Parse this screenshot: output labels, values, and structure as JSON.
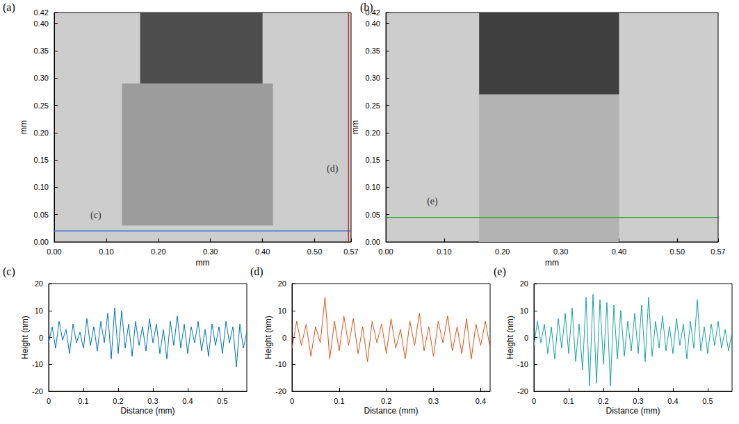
{
  "chart_data": [
    {
      "type": "image",
      "label": "(a)",
      "x_label": "mm",
      "y_label": "mm",
      "xlim": [
        0,
        0.57
      ],
      "xticks": [
        {
          "value": 0,
          "label": "0.00"
        },
        {
          "value": 0.1,
          "label": "0.10"
        },
        {
          "value": 0.2,
          "label": "0.20"
        },
        {
          "value": 0.3,
          "label": "0.30"
        },
        {
          "value": 0.4,
          "label": "0.40"
        },
        {
          "value": 0.5,
          "label": "0.50"
        },
        {
          "value": 0.57,
          "label": "0.57"
        }
      ],
      "ylim": [
        0,
        0.42
      ],
      "yticks": [
        {
          "value": 0,
          "label": "0.00"
        },
        {
          "value": 0.05,
          "label": "0.05"
        },
        {
          "value": 0.1,
          "label": "0.10"
        },
        {
          "value": 0.15,
          "label": "0.15"
        },
        {
          "value": 0.2,
          "label": "0.20"
        },
        {
          "value": 0.25,
          "label": "0.25"
        },
        {
          "value": 0.3,
          "label": "0.30"
        },
        {
          "value": 0.35,
          "label": "0.35"
        },
        {
          "value": 0.4,
          "label": "0.40"
        },
        {
          "value": 0.42,
          "label": "0.42"
        }
      ],
      "grid": false,
      "regions": [
        {
          "x": [
            0.13,
            0.42
          ],
          "y": [
            0.03,
            0.29
          ],
          "color": "#9c9c9c"
        },
        {
          "x": [
            0.165,
            0.4
          ],
          "y": [
            0.29,
            0.42
          ],
          "color": "#4d4d4d"
        }
      ],
      "profiles": [
        {
          "label": "(c)",
          "x": [
            0,
            0.57
          ],
          "y": [
            0.02,
            0.02
          ],
          "color": "#3b6fd4"
        },
        {
          "label": "(d)",
          "x": [
            0.565,
            0.565
          ],
          "y": [
            0,
            0.42
          ],
          "color": "#c0392b"
        }
      ]
    },
    {
      "type": "image",
      "label": "(b)",
      "x_label": "mm",
      "y_label": "mm",
      "xlim": [
        0,
        0.57
      ],
      "xticks": [
        {
          "value": 0,
          "label": "0.00"
        },
        {
          "value": 0.1,
          "label": "0.10"
        },
        {
          "value": 0.2,
          "label": "0.20"
        },
        {
          "value": 0.3,
          "label": "0.30"
        },
        {
          "value": 0.4,
          "label": "0.40"
        },
        {
          "value": 0.5,
          "label": "0.50"
        },
        {
          "value": 0.57,
          "label": "0.57"
        }
      ],
      "ylim": [
        0,
        0.42
      ],
      "yticks": [
        {
          "value": 0,
          "label": "0.00"
        },
        {
          "value": 0.05,
          "label": "0.05"
        },
        {
          "value": 0.1,
          "label": "0.10"
        },
        {
          "value": 0.15,
          "label": "0.15"
        },
        {
          "value": 0.2,
          "label": "0.20"
        },
        {
          "value": 0.25,
          "label": "0.25"
        },
        {
          "value": 0.3,
          "label": "0.30"
        },
        {
          "value": 0.35,
          "label": "0.35"
        },
        {
          "value": 0.4,
          "label": "0.40"
        },
        {
          "value": 0.42,
          "label": "0.42"
        }
      ],
      "grid": false,
      "regions": [
        {
          "x": [
            0.16,
            0.4
          ],
          "y": [
            0.0,
            0.27
          ],
          "color": "#b3b3b3"
        },
        {
          "x": [
            0.16,
            0.4
          ],
          "y": [
            0.27,
            0.42
          ],
          "color": "#3f3f3f"
        }
      ],
      "profiles": [
        {
          "label": "(e)",
          "x": [
            0,
            0.57
          ],
          "y": [
            0.045,
            0.045
          ],
          "color": "#2ca02c"
        }
      ]
    },
    {
      "type": "line",
      "label": "(c)",
      "x_label": "Distance (mm)",
      "y_label": "Height (nm)",
      "xlim": [
        0,
        0.57
      ],
      "xticks": [
        0,
        0.1,
        0.2,
        0.3,
        0.4,
        0.5
      ],
      "ylim": [
        -20,
        20
      ],
      "yticks": [
        -20,
        -10,
        0,
        10,
        20
      ],
      "grid": false,
      "color": "#0072bd",
      "x": [
        0,
        0.01,
        0.02,
        0.03,
        0.04,
        0.05,
        0.06,
        0.07,
        0.08,
        0.09,
        0.1,
        0.11,
        0.12,
        0.13,
        0.14,
        0.15,
        0.16,
        0.17,
        0.18,
        0.19,
        0.2,
        0.21,
        0.22,
        0.23,
        0.24,
        0.25,
        0.26,
        0.27,
        0.28,
        0.29,
        0.3,
        0.31,
        0.32,
        0.33,
        0.34,
        0.35,
        0.36,
        0.37,
        0.38,
        0.39,
        0.4,
        0.41,
        0.42,
        0.43,
        0.44,
        0.45,
        0.46,
        0.47,
        0.48,
        0.49,
        0.5,
        0.51,
        0.52,
        0.53,
        0.54,
        0.55,
        0.56,
        0.57
      ],
      "values": [
        -2,
        4,
        -4,
        6,
        -1,
        3,
        -6,
        5,
        -2,
        2,
        -4,
        7,
        -3,
        4,
        -5,
        6,
        -2,
        9,
        -8,
        11,
        -6,
        10,
        -4,
        5,
        -7,
        6,
        -3,
        4,
        -5,
        7,
        -2,
        5,
        -6,
        3,
        -8,
        6,
        -3,
        8,
        -4,
        5,
        -6,
        4,
        -2,
        6,
        -5,
        3,
        -7,
        5,
        -3,
        4,
        -6,
        6,
        -2,
        4,
        -11,
        5,
        -4,
        2
      ]
    },
    {
      "type": "line",
      "label": "(d)",
      "x_label": "Distance (mm)",
      "y_label": "Height (nm)",
      "xlim": [
        0,
        0.42
      ],
      "xticks": [
        0,
        0.1,
        0.2,
        0.3,
        0.4
      ],
      "ylim": [
        -20,
        20
      ],
      "yticks": [
        -20,
        -10,
        0,
        10,
        20
      ],
      "grid": false,
      "color": "#d95319",
      "x": [
        0,
        0.01,
        0.02,
        0.03,
        0.04,
        0.05,
        0.06,
        0.07,
        0.08,
        0.09,
        0.1,
        0.11,
        0.12,
        0.13,
        0.14,
        0.15,
        0.16,
        0.17,
        0.18,
        0.19,
        0.2,
        0.21,
        0.22,
        0.23,
        0.24,
        0.25,
        0.26,
        0.27,
        0.28,
        0.29,
        0.3,
        0.31,
        0.32,
        0.33,
        0.34,
        0.35,
        0.36,
        0.37,
        0.38,
        0.39,
        0.4,
        0.41,
        0.42
      ],
      "values": [
        -4,
        6,
        -3,
        5,
        -7,
        4,
        -2,
        15,
        -8,
        6,
        -5,
        8,
        -3,
        7,
        -6,
        4,
        -9,
        6,
        -2,
        5,
        -6,
        7,
        -4,
        3,
        -8,
        6,
        -3,
        9,
        -5,
        4,
        -7,
        6,
        -2,
        8,
        -5,
        4,
        -6,
        7,
        -8,
        5,
        -3,
        6,
        -4
      ]
    },
    {
      "type": "line",
      "label": "(e)",
      "x_label": "Distance (mm)",
      "y_label": "Height (nm)",
      "xlim": [
        0,
        0.57
      ],
      "xticks": [
        0,
        0.1,
        0.2,
        0.3,
        0.4,
        0.5
      ],
      "ylim": [
        -20,
        20
      ],
      "yticks": [
        -20,
        -10,
        0,
        10,
        20
      ],
      "grid": false,
      "color": "#17a2a2",
      "x": [
        0,
        0.01,
        0.02,
        0.03,
        0.04,
        0.05,
        0.06,
        0.07,
        0.08,
        0.09,
        0.1,
        0.11,
        0.12,
        0.13,
        0.14,
        0.15,
        0.16,
        0.17,
        0.18,
        0.19,
        0.2,
        0.21,
        0.22,
        0.23,
        0.24,
        0.25,
        0.26,
        0.27,
        0.28,
        0.29,
        0.3,
        0.31,
        0.32,
        0.33,
        0.34,
        0.35,
        0.36,
        0.37,
        0.38,
        0.39,
        0.4,
        0.41,
        0.42,
        0.43,
        0.44,
        0.45,
        0.46,
        0.47,
        0.48,
        0.49,
        0.5,
        0.51,
        0.52,
        0.53,
        0.54,
        0.55,
        0.56,
        0.57
      ],
      "values": [
        -3,
        6,
        -2,
        5,
        -6,
        4,
        -8,
        7,
        -4,
        9,
        -6,
        11,
        -9,
        5,
        -12,
        15,
        -18,
        16,
        -17,
        14,
        -10,
        13,
        -18,
        12,
        -8,
        10,
        -7,
        6,
        -5,
        9,
        -6,
        12,
        -9,
        15,
        -7,
        6,
        -4,
        8,
        -5,
        4,
        -6,
        7,
        -3,
        5,
        -8,
        6,
        -4,
        14,
        -5,
        4,
        -6,
        5,
        -3,
        6,
        -4,
        3,
        -5,
        2
      ]
    }
  ]
}
